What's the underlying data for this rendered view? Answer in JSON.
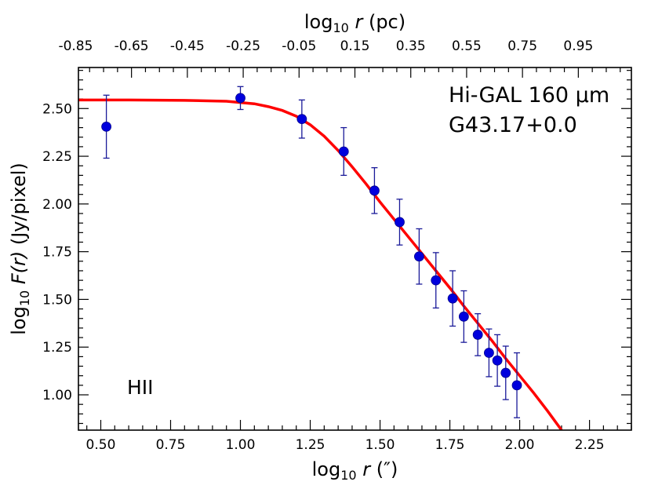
{
  "chart_data": {
    "type": "scatter",
    "title": "",
    "xlabel": {
      "prefix": "log",
      "sub": "10",
      "var": "r",
      "unit": " (″)"
    },
    "ylabel": {
      "prefix": "log",
      "sub": "10",
      "var": "F(r)",
      "unit": " (Jy/pixel)"
    },
    "top_xlabel": {
      "prefix": "log",
      "sub": "10",
      "var": "r",
      "unit": " (pc)"
    },
    "xlim": [
      0.42,
      2.4
    ],
    "ylim": [
      0.815,
      2.715
    ],
    "x_ticks": [
      "0.50",
      "0.75",
      "1.00",
      "1.25",
      "1.50",
      "1.75",
      "2.00",
      "2.25"
    ],
    "y_ticks": [
      "1.00",
      "1.25",
      "1.50",
      "1.75",
      "2.00",
      "2.25",
      "2.50"
    ],
    "top_ticks": [
      {
        "label": "-0.85",
        "x": 0.41
      },
      {
        "label": "-0.65",
        "x": 0.61
      },
      {
        "label": "-0.45",
        "x": 0.81
      },
      {
        "label": "-0.25",
        "x": 1.01
      },
      {
        "label": "-0.05",
        "x": 1.21
      },
      {
        "label": "0.15",
        "x": 1.41
      },
      {
        "label": "0.35",
        "x": 1.61
      },
      {
        "label": "0.55",
        "x": 1.81
      },
      {
        "label": "0.75",
        "x": 2.01
      },
      {
        "label": "0.95",
        "x": 2.21
      }
    ],
    "annotations": {
      "survey": "Hi-GAL 160 μm",
      "source": "G43.17+0.0",
      "region": "HII"
    },
    "series": [
      {
        "kind": "points",
        "color": "#0000dd",
        "errorbar_color": "#1a1a99",
        "points": [
          {
            "x": 0.52,
            "y": 2.405,
            "err": 0.165
          },
          {
            "x": 1.0,
            "y": 2.555,
            "err": 0.06
          },
          {
            "x": 1.22,
            "y": 2.445,
            "err": 0.1
          },
          {
            "x": 1.37,
            "y": 2.275,
            "err": 0.125
          },
          {
            "x": 1.48,
            "y": 2.07,
            "err": 0.12
          },
          {
            "x": 1.57,
            "y": 1.905,
            "err": 0.12
          },
          {
            "x": 1.64,
            "y": 1.725,
            "err": 0.145
          },
          {
            "x": 1.7,
            "y": 1.6,
            "err": 0.145
          },
          {
            "x": 1.76,
            "y": 1.505,
            "err": 0.145
          },
          {
            "x": 1.8,
            "y": 1.41,
            "err": 0.135
          },
          {
            "x": 1.85,
            "y": 1.315,
            "err": 0.11
          },
          {
            "x": 1.89,
            "y": 1.22,
            "err": 0.125
          },
          {
            "x": 1.92,
            "y": 1.18,
            "err": 0.135
          },
          {
            "x": 1.95,
            "y": 1.115,
            "err": 0.14
          },
          {
            "x": 1.99,
            "y": 1.05,
            "err": 0.17
          }
        ]
      },
      {
        "kind": "fit",
        "color": "#ff0000",
        "points": [
          [
            0.42,
            2.545
          ],
          [
            0.6,
            2.545
          ],
          [
            0.8,
            2.543
          ],
          [
            0.95,
            2.538
          ],
          [
            1.05,
            2.525
          ],
          [
            1.1,
            2.51
          ],
          [
            1.15,
            2.49
          ],
          [
            1.2,
            2.46
          ],
          [
            1.25,
            2.415
          ],
          [
            1.3,
            2.355
          ],
          [
            1.35,
            2.28
          ],
          [
            1.4,
            2.195
          ],
          [
            1.45,
            2.105
          ],
          [
            1.5,
            2.01
          ],
          [
            1.55,
            1.92
          ],
          [
            1.6,
            1.83
          ],
          [
            1.65,
            1.74
          ],
          [
            1.7,
            1.65
          ],
          [
            1.75,
            1.56
          ],
          [
            1.8,
            1.465
          ],
          [
            1.85,
            1.375
          ],
          [
            1.9,
            1.285
          ],
          [
            1.95,
            1.19
          ],
          [
            2.0,
            1.1
          ],
          [
            2.05,
            1.01
          ],
          [
            2.1,
            0.915
          ],
          [
            2.15,
            0.815
          ]
        ]
      }
    ]
  }
}
